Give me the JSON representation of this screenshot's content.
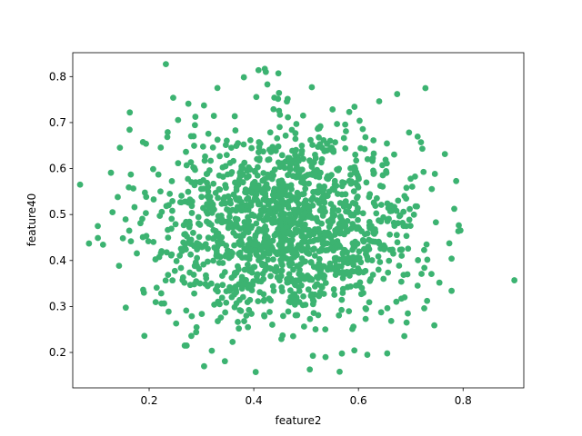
{
  "chart_data": {
    "type": "scatter",
    "title": "",
    "xlabel": "feature2",
    "ylabel": "feature40",
    "xlim": [
      0.054,
      0.916
    ],
    "ylim": [
      0.123,
      0.852
    ],
    "xticks": [
      0.2,
      0.4,
      0.6,
      0.8
    ],
    "xtick_labels": [
      "0.2",
      "0.4",
      "0.6",
      "0.8"
    ],
    "yticks": [
      0.2,
      0.3,
      0.4,
      0.5,
      0.6,
      0.7,
      0.8
    ],
    "ytick_labels": [
      "0.2",
      "0.3",
      "0.4",
      "0.5",
      "0.6",
      "0.7",
      "0.8"
    ],
    "grid": false,
    "legend": "none",
    "marker_color": "#3cb371",
    "point_count": 1500,
    "distribution": {
      "center": [
        0.465,
        0.478
      ],
      "std": [
        0.125,
        0.106
      ]
    },
    "points": [
      [
        0.232,
        0.827
      ],
      [
        0.728,
        0.775
      ],
      [
        0.163,
        0.722
      ],
      [
        0.068,
        0.565
      ],
      [
        0.085,
        0.437
      ],
      [
        0.898,
        0.357
      ],
      [
        0.778,
        0.334
      ],
      [
        0.13,
        0.505
      ],
      [
        0.165,
        0.587
      ],
      [
        0.19,
        0.33
      ],
      [
        0.268,
        0.215
      ],
      [
        0.305,
        0.17
      ],
      [
        0.564,
        0.158
      ],
      [
        0.507,
        0.163
      ],
      [
        0.617,
        0.195
      ],
      [
        0.409,
        0.814
      ],
      [
        0.421,
        0.817
      ],
      [
        0.447,
        0.807
      ],
      [
        0.426,
        0.783
      ],
      [
        0.674,
        0.762
      ],
      [
        0.745,
        0.259
      ],
      [
        0.655,
        0.198
      ],
      [
        0.692,
        0.265
      ],
      [
        0.778,
        0.404
      ],
      [
        0.748,
        0.483
      ],
      [
        0.246,
        0.754
      ],
      [
        0.275,
        0.741
      ],
      [
        0.194,
        0.654
      ],
      [
        0.102,
        0.449
      ],
      [
        0.14,
        0.538
      ]
    ]
  }
}
